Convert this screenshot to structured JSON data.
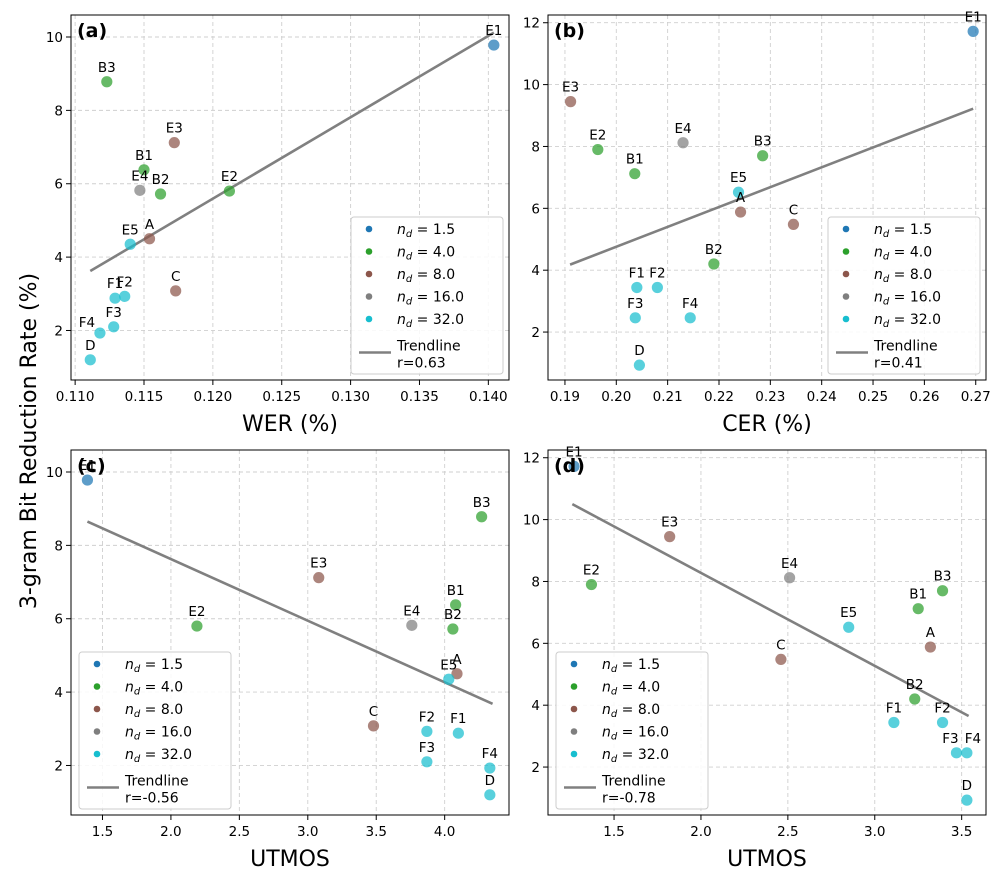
{
  "figure": {
    "shared_ylabel": "3-gram Bit Reduction Rate (%)"
  },
  "legend": {
    "entries": [
      {
        "label": "n_d = 1.5",
        "sym": "n",
        "sub": "d",
        "rest": " = 1.5",
        "color": "#1f77b4"
      },
      {
        "label": "n_d = 4.0",
        "sym": "n",
        "sub": "d",
        "rest": " = 4.0",
        "color": "#2ca02c"
      },
      {
        "label": "n_d = 8.0",
        "sym": "n",
        "sub": "d",
        "rest": " = 8.0",
        "color": "#8c564b"
      },
      {
        "label": "n_d = 16.0",
        "sym": "n",
        "sub": "d",
        "rest": " = 16.0",
        "color": "#7f7f7f"
      },
      {
        "label": "n_d = 32.0",
        "sym": "n",
        "sub": "d",
        "rest": " = 32.0",
        "color": "#17becf"
      }
    ],
    "trend_label": "Trendline",
    "trend_color": "#808080"
  },
  "chart_data": [
    {
      "type": "scatter",
      "panel": "(a)",
      "xlabel": "WER (%)",
      "ylabel": "3-gram Bit Reduction Rate (%)",
      "xlim": [
        0.1097,
        0.1415
      ],
      "ylim": [
        0.65,
        10.6
      ],
      "xticks": [
        0.11,
        0.115,
        0.12,
        0.125,
        0.13,
        0.135,
        0.14
      ],
      "xtick_labels": [
        "0.110",
        "0.115",
        "0.120",
        "0.125",
        "0.130",
        "0.135",
        "0.140"
      ],
      "yticks": [
        2,
        4,
        6,
        8,
        10
      ],
      "ytick_labels": [
        "2",
        "4",
        "6",
        "8",
        "10"
      ],
      "grid": true,
      "legend_position": "lower-right",
      "correlation": "r=0.63",
      "trendline": {
        "x1": 0.1111,
        "y1": 3.62,
        "x2": 0.1404,
        "y2": 10.12
      },
      "points": [
        {
          "label": "E1",
          "nd": 1.5,
          "x": 0.1404,
          "y": 9.78
        },
        {
          "label": "B3",
          "nd": 4.0,
          "x": 0.1123,
          "y": 8.78
        },
        {
          "label": "B1",
          "nd": 4.0,
          "x": 0.115,
          "y": 6.38
        },
        {
          "label": "B2",
          "nd": 4.0,
          "x": 0.1162,
          "y": 5.72
        },
        {
          "label": "E2",
          "nd": 4.0,
          "x": 0.1212,
          "y": 5.8
        },
        {
          "label": "E3",
          "nd": 8.0,
          "x": 0.1172,
          "y": 7.12
        },
        {
          "label": "A",
          "nd": 8.0,
          "x": 0.1154,
          "y": 4.5
        },
        {
          "label": "C",
          "nd": 8.0,
          "x": 0.1173,
          "y": 3.08
        },
        {
          "label": "E4",
          "nd": 16.0,
          "x": 0.1147,
          "y": 5.82
        },
        {
          "label": "E5",
          "nd": 32.0,
          "x": 0.114,
          "y": 4.35
        },
        {
          "label": "F1",
          "nd": 32.0,
          "x": 0.1129,
          "y": 2.88
        },
        {
          "label": "F2",
          "nd": 32.0,
          "x": 0.1136,
          "y": 2.93
        },
        {
          "label": "F3",
          "nd": 32.0,
          "x": 0.1128,
          "y": 2.1
        },
        {
          "label": "F4",
          "nd": 32.0,
          "x": 0.1118,
          "y": 1.93
        },
        {
          "label": "D",
          "nd": 32.0,
          "x": 0.1111,
          "y": 1.2
        }
      ]
    },
    {
      "type": "scatter",
      "panel": "(b)",
      "xlabel": "CER (%)",
      "ylabel": "",
      "xlim": [
        0.1867,
        0.272
      ],
      "ylim": [
        0.45,
        12.25
      ],
      "xticks": [
        0.19,
        0.2,
        0.21,
        0.22,
        0.23,
        0.24,
        0.25,
        0.26,
        0.27
      ],
      "xtick_labels": [
        "0.19",
        "0.20",
        "0.21",
        "0.22",
        "0.23",
        "0.24",
        "0.25",
        "0.26",
        "0.27"
      ],
      "yticks": [
        2,
        4,
        6,
        8,
        10,
        12
      ],
      "ytick_labels": [
        "2",
        "4",
        "6",
        "8",
        "10",
        "12"
      ],
      "grid": true,
      "legend_position": "lower-right",
      "correlation": "r=0.41",
      "trendline": {
        "x1": 0.191,
        "y1": 4.18,
        "x2": 0.2695,
        "y2": 9.22
      },
      "points": [
        {
          "label": "E1",
          "nd": 1.5,
          "x": 0.2695,
          "y": 11.72
        },
        {
          "label": "E2",
          "nd": 4.0,
          "x": 0.1964,
          "y": 7.9
        },
        {
          "label": "B1",
          "nd": 4.0,
          "x": 0.2036,
          "y": 7.12
        },
        {
          "label": "B3",
          "nd": 4.0,
          "x": 0.2285,
          "y": 7.7
        },
        {
          "label": "B2",
          "nd": 4.0,
          "x": 0.219,
          "y": 4.2
        },
        {
          "label": "E3",
          "nd": 8.0,
          "x": 0.1911,
          "y": 9.45
        },
        {
          "label": "A",
          "nd": 8.0,
          "x": 0.2242,
          "y": 5.88
        },
        {
          "label": "C",
          "nd": 8.0,
          "x": 0.2345,
          "y": 5.48
        },
        {
          "label": "E4",
          "nd": 16.0,
          "x": 0.213,
          "y": 8.12
        },
        {
          "label": "E5",
          "nd": 32.0,
          "x": 0.2238,
          "y": 6.52
        },
        {
          "label": "F1",
          "nd": 32.0,
          "x": 0.204,
          "y": 3.44
        },
        {
          "label": "F2",
          "nd": 32.0,
          "x": 0.208,
          "y": 3.44
        },
        {
          "label": "F3",
          "nd": 32.0,
          "x": 0.2037,
          "y": 2.46
        },
        {
          "label": "F4",
          "nd": 32.0,
          "x": 0.2144,
          "y": 2.46
        },
        {
          "label": "D",
          "nd": 32.0,
          "x": 0.2045,
          "y": 0.93
        }
      ]
    },
    {
      "type": "scatter",
      "panel": "(c)",
      "xlabel": "UTMOS",
      "ylabel": "3-gram Bit Reduction Rate (%)",
      "xlim": [
        1.27,
        4.47
      ],
      "ylim": [
        0.65,
        10.6
      ],
      "xticks": [
        1.5,
        2.0,
        2.5,
        3.0,
        3.5,
        4.0
      ],
      "xtick_labels": [
        "1.5",
        "2.0",
        "2.5",
        "3.0",
        "3.5",
        "4.0"
      ],
      "yticks": [
        2,
        4,
        6,
        8,
        10
      ],
      "ytick_labels": [
        "2",
        "4",
        "6",
        "8",
        "10"
      ],
      "grid": true,
      "legend_position": "lower-left",
      "correlation": "r=-0.56",
      "trendline": {
        "x1": 1.39,
        "y1": 8.65,
        "x2": 4.35,
        "y2": 3.68
      },
      "points": [
        {
          "label": "E1",
          "nd": 1.5,
          "x": 1.39,
          "y": 9.78
        },
        {
          "label": "B3",
          "nd": 4.0,
          "x": 4.27,
          "y": 8.78
        },
        {
          "label": "B1",
          "nd": 4.0,
          "x": 4.08,
          "y": 6.38
        },
        {
          "label": "B2",
          "nd": 4.0,
          "x": 4.06,
          "y": 5.72
        },
        {
          "label": "E2",
          "nd": 4.0,
          "x": 2.19,
          "y": 5.8
        },
        {
          "label": "E3",
          "nd": 8.0,
          "x": 3.08,
          "y": 7.12
        },
        {
          "label": "A",
          "nd": 8.0,
          "x": 4.09,
          "y": 4.5
        },
        {
          "label": "C",
          "nd": 8.0,
          "x": 3.48,
          "y": 3.08
        },
        {
          "label": "E4",
          "nd": 16.0,
          "x": 3.76,
          "y": 5.82
        },
        {
          "label": "E5",
          "nd": 32.0,
          "x": 4.03,
          "y": 4.35
        },
        {
          "label": "F1",
          "nd": 32.0,
          "x": 4.1,
          "y": 2.88
        },
        {
          "label": "F2",
          "nd": 32.0,
          "x": 3.87,
          "y": 2.93
        },
        {
          "label": "F3",
          "nd": 32.0,
          "x": 3.87,
          "y": 2.1
        },
        {
          "label": "F4",
          "nd": 32.0,
          "x": 4.33,
          "y": 1.93
        },
        {
          "label": "D",
          "nd": 32.0,
          "x": 4.33,
          "y": 1.2
        }
      ]
    },
    {
      "type": "scatter",
      "panel": "(d)",
      "xlabel": "UTMOS",
      "ylabel": "",
      "xlim": [
        1.12,
        3.64
      ],
      "ylim": [
        0.45,
        12.25
      ],
      "xticks": [
        1.5,
        2.0,
        2.5,
        3.0,
        3.5
      ],
      "xtick_labels": [
        "1.5",
        "2.0",
        "2.5",
        "3.0",
        "3.5"
      ],
      "yticks": [
        2,
        4,
        6,
        8,
        10,
        12
      ],
      "ytick_labels": [
        "2",
        "4",
        "6",
        "8",
        "10",
        "12"
      ],
      "grid": true,
      "legend_position": "lower-left",
      "correlation": "r=-0.78",
      "trendline": {
        "x1": 1.26,
        "y1": 10.5,
        "x2": 3.54,
        "y2": 3.65
      },
      "points": [
        {
          "label": "E1",
          "nd": 1.5,
          "x": 1.27,
          "y": 11.72
        },
        {
          "label": "E2",
          "nd": 4.0,
          "x": 1.37,
          "y": 7.9
        },
        {
          "label": "B1",
          "nd": 4.0,
          "x": 3.25,
          "y": 7.12
        },
        {
          "label": "B3",
          "nd": 4.0,
          "x": 3.39,
          "y": 7.7
        },
        {
          "label": "B2",
          "nd": 4.0,
          "x": 3.23,
          "y": 4.2
        },
        {
          "label": "E3",
          "nd": 8.0,
          "x": 1.82,
          "y": 9.45
        },
        {
          "label": "A",
          "nd": 8.0,
          "x": 3.32,
          "y": 5.88
        },
        {
          "label": "C",
          "nd": 8.0,
          "x": 2.46,
          "y": 5.48
        },
        {
          "label": "E4",
          "nd": 16.0,
          "x": 2.51,
          "y": 8.12
        },
        {
          "label": "E5",
          "nd": 32.0,
          "x": 2.85,
          "y": 6.52
        },
        {
          "label": "F1",
          "nd": 32.0,
          "x": 3.11,
          "y": 3.44
        },
        {
          "label": "F2",
          "nd": 32.0,
          "x": 3.39,
          "y": 3.44
        },
        {
          "label": "F3",
          "nd": 32.0,
          "x": 3.47,
          "y": 2.46
        },
        {
          "label": "F4",
          "nd": 32.0,
          "x": 3.53,
          "y": 2.46
        },
        {
          "label": "D",
          "nd": 32.0,
          "x": 3.53,
          "y": 0.93
        }
      ]
    }
  ]
}
